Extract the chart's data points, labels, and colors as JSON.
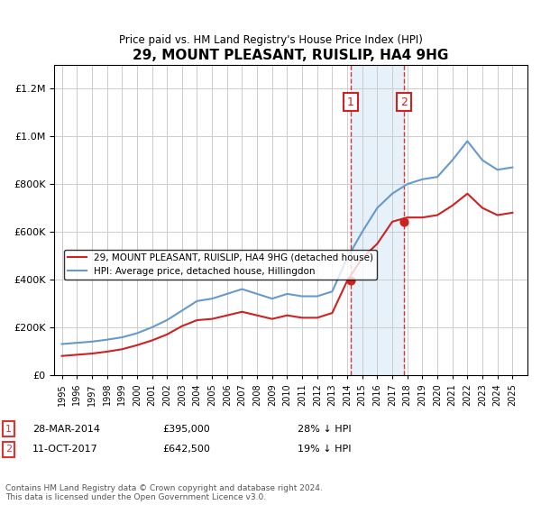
{
  "title": "29, MOUNT PLEASANT, RUISLIP, HA4 9HG",
  "subtitle": "Price paid vs. HM Land Registry's House Price Index (HPI)",
  "legend_line1": "29, MOUNT PLEASANT, RUISLIP, HA4 9HG (detached house)",
  "legend_line2": "HPI: Average price, detached house, Hillingdon",
  "footnote": "Contains HM Land Registry data © Crown copyright and database right 2024.\nThis data is licensed under the Open Government Licence v3.0.",
  "annotation1": {
    "label": "1",
    "date": "28-MAR-2014",
    "price": "£395,000",
    "hpi": "28% ↓ HPI"
  },
  "annotation2": {
    "label": "2",
    "date": "11-OCT-2017",
    "price": "£642,500",
    "hpi": "19% ↓ HPI"
  },
  "sale1_x": 2014.23,
  "sale1_y": 395000,
  "sale2_x": 2017.78,
  "sale2_y": 642500,
  "hpi_color": "#6699cc",
  "price_color": "#cc2222",
  "sale_dot_color": "#cc2222",
  "vline_color": "#dd3333",
  "shade_color": "#d0e4f7",
  "ylim": [
    0,
    1300000
  ],
  "xlim": [
    1994.5,
    2026
  ],
  "hpi_x": [
    1995,
    1996,
    1997,
    1998,
    1999,
    2000,
    2001,
    2002,
    2003,
    2004,
    2005,
    2006,
    2007,
    2008,
    2009,
    2010,
    2011,
    2012,
    2013,
    2014,
    2015,
    2016,
    2017,
    2018,
    2019,
    2020,
    2021,
    2022,
    2023,
    2024,
    2025
  ],
  "hpi_y": [
    130000,
    135000,
    140000,
    148000,
    158000,
    175000,
    200000,
    230000,
    270000,
    310000,
    320000,
    340000,
    360000,
    340000,
    320000,
    340000,
    330000,
    330000,
    350000,
    490000,
    600000,
    700000,
    760000,
    800000,
    820000,
    830000,
    900000,
    980000,
    900000,
    860000,
    870000
  ],
  "price_x": [
    1995,
    1996,
    1997,
    1998,
    1999,
    2000,
    2001,
    2002,
    2003,
    2004,
    2005,
    2006,
    2007,
    2008,
    2009,
    2010,
    2011,
    2012,
    2013,
    2014,
    2015,
    2016,
    2017,
    2018,
    2019,
    2020,
    2021,
    2022,
    2023,
    2024,
    2025
  ],
  "price_y": [
    80000,
    85000,
    90000,
    98000,
    108000,
    125000,
    145000,
    170000,
    205000,
    230000,
    235000,
    250000,
    265000,
    250000,
    235000,
    250000,
    240000,
    240000,
    260000,
    395000,
    490000,
    550000,
    642500,
    660000,
    660000,
    670000,
    710000,
    760000,
    700000,
    670000,
    680000
  ]
}
